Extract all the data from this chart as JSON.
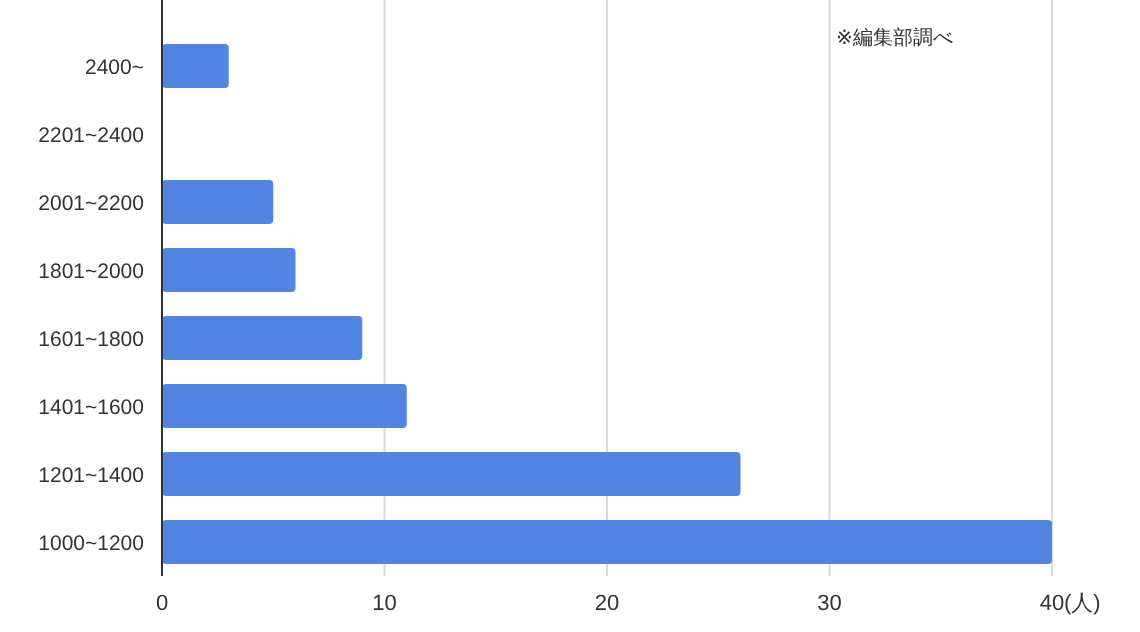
{
  "chart_data": {
    "type": "bar",
    "orientation": "horizontal",
    "categories": [
      "2400~",
      "2201~2400",
      "2001~2200",
      "1801~2000",
      "1601~1800",
      "1401~1600",
      "1201~1400",
      "1000~1200"
    ],
    "values": [
      3,
      0,
      5,
      6,
      9,
      11,
      26,
      40
    ],
    "color": "#5284e4",
    "xlim": [
      0,
      40
    ],
    "xticks": [
      0,
      10,
      20,
      30,
      40
    ],
    "xlabel": "(人)",
    "grid": "x",
    "annotations": [
      "※編集部調べ"
    ]
  }
}
